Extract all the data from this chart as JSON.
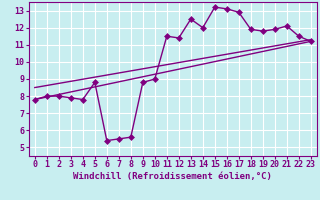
{
  "xlabel": "Windchill (Refroidissement éolien,°C)",
  "background_color": "#c8eef0",
  "line_color": "#800080",
  "grid_color": "#ffffff",
  "x_data": [
    0,
    1,
    2,
    3,
    4,
    5,
    6,
    7,
    8,
    9,
    10,
    11,
    12,
    13,
    14,
    15,
    16,
    17,
    18,
    19,
    20,
    21,
    22,
    23
  ],
  "y_data": [
    7.8,
    8.0,
    8.0,
    7.9,
    7.8,
    8.8,
    5.4,
    5.5,
    5.6,
    8.8,
    9.0,
    11.5,
    11.4,
    12.5,
    12.0,
    13.2,
    13.1,
    12.9,
    11.9,
    11.8,
    11.9,
    12.1,
    11.5,
    11.2
  ],
  "trend1_x": [
    0,
    23
  ],
  "trend1_y": [
    7.8,
    11.2
  ],
  "trend2_x": [
    0,
    23
  ],
  "trend2_y": [
    8.5,
    11.3
  ],
  "xlim": [
    -0.5,
    23.5
  ],
  "ylim": [
    4.5,
    13.5
  ],
  "yticks": [
    5,
    6,
    7,
    8,
    9,
    10,
    11,
    12,
    13
  ],
  "xticks": [
    0,
    1,
    2,
    3,
    4,
    5,
    6,
    7,
    8,
    9,
    10,
    11,
    12,
    13,
    14,
    15,
    16,
    17,
    18,
    19,
    20,
    21,
    22,
    23
  ],
  "markersize": 3,
  "linewidth": 1.0,
  "xlabel_fontsize": 6.5,
  "tick_fontsize": 6
}
